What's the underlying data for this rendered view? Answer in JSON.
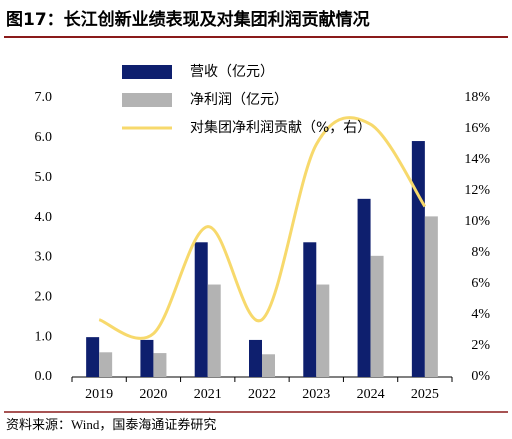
{
  "chart_data": {
    "type": "bar_line",
    "title": "图17：长江创新业绩表现及对集团利润贡献情况",
    "source": "资料来源：Wind，国泰海通证券研究",
    "categories": [
      "2019",
      "2020",
      "2021",
      "2022",
      "2023",
      "2024",
      "2025"
    ],
    "series": [
      {
        "name": "营收（亿元）",
        "type": "bar",
        "color": "#0e1f6e",
        "values": [
          1.0,
          0.93,
          3.38,
          0.93,
          3.38,
          4.47,
          5.92
        ]
      },
      {
        "name": "净利润（亿元）",
        "type": "bar",
        "color": "#b3b3b3",
        "values": [
          0.62,
          0.6,
          2.32,
          0.57,
          2.32,
          3.04,
          4.03
        ]
      },
      {
        "name": "对集团净利润贡献（%，右）",
        "type": "line",
        "axis": "y2",
        "color": "#f7d96c",
        "values": [
          3.7,
          2.8,
          9.7,
          3.7,
          15.0,
          16.3,
          11.0
        ]
      }
    ],
    "ylim": [
      0,
      7
    ],
    "yticks": [
      {
        "value": 0,
        "label": "0.0"
      },
      {
        "value": 1,
        "label": "1.0"
      },
      {
        "value": 2,
        "label": "2.0"
      },
      {
        "value": 3,
        "label": "3.0"
      },
      {
        "value": 4,
        "label": "4.0"
      },
      {
        "value": 5,
        "label": "5.0"
      },
      {
        "value": 6,
        "label": "6.0"
      },
      {
        "value": 7,
        "label": "7.0"
      }
    ],
    "y2lim": [
      0,
      18
    ],
    "y2ticks": [
      {
        "value": 0,
        "label": "0%"
      },
      {
        "value": 2,
        "label": "2%"
      },
      {
        "value": 4,
        "label": "4%"
      },
      {
        "value": 6,
        "label": "6%"
      },
      {
        "value": 8,
        "label": "8%"
      },
      {
        "value": 10,
        "label": "10%"
      },
      {
        "value": 12,
        "label": "12%"
      },
      {
        "value": 14,
        "label": "14%"
      },
      {
        "value": 16,
        "label": "16%"
      },
      {
        "value": 18,
        "label": "18%"
      }
    ],
    "grid": false,
    "legend": "top-left"
  }
}
